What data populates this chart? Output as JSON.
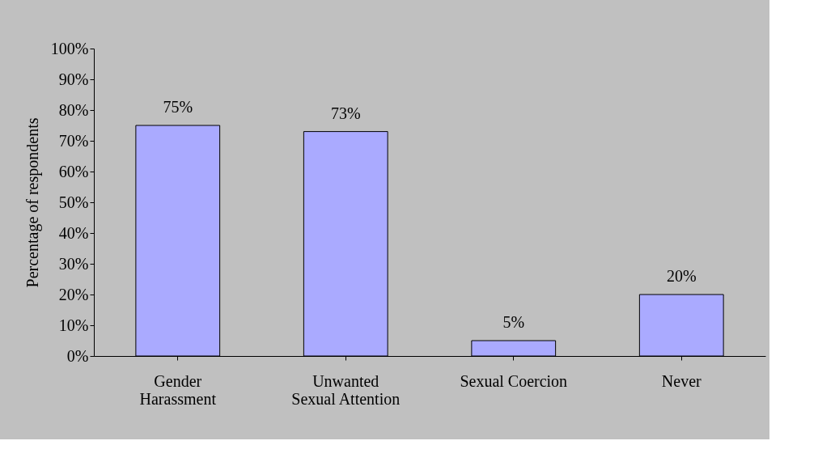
{
  "chart_data": {
    "type": "bar",
    "ylabel": "Percentage of respondents",
    "categories": [
      "Gender\nHarassment",
      "Unwanted\nSexual Attention",
      "Sexual Coercion",
      "Never"
    ],
    "values": [
      75,
      73,
      5,
      20
    ],
    "value_labels": [
      "75%",
      "73%",
      "5%",
      "20%"
    ],
    "color": "#aaaaff",
    "ylim": [
      0,
      100
    ],
    "yticks": [
      {
        "value": 0,
        "label": "0%"
      },
      {
        "value": 10,
        "label": "10%"
      },
      {
        "value": 20,
        "label": "20%"
      },
      {
        "value": 30,
        "label": "30%"
      },
      {
        "value": 40,
        "label": "40%"
      },
      {
        "value": 50,
        "label": "50%"
      },
      {
        "value": 60,
        "label": "60%"
      },
      {
        "value": 70,
        "label": "70%"
      },
      {
        "value": 80,
        "label": "80%"
      },
      {
        "value": 90,
        "label": "90%"
      },
      {
        "value": 100,
        "label": "100%"
      }
    ],
    "grid": false
  }
}
